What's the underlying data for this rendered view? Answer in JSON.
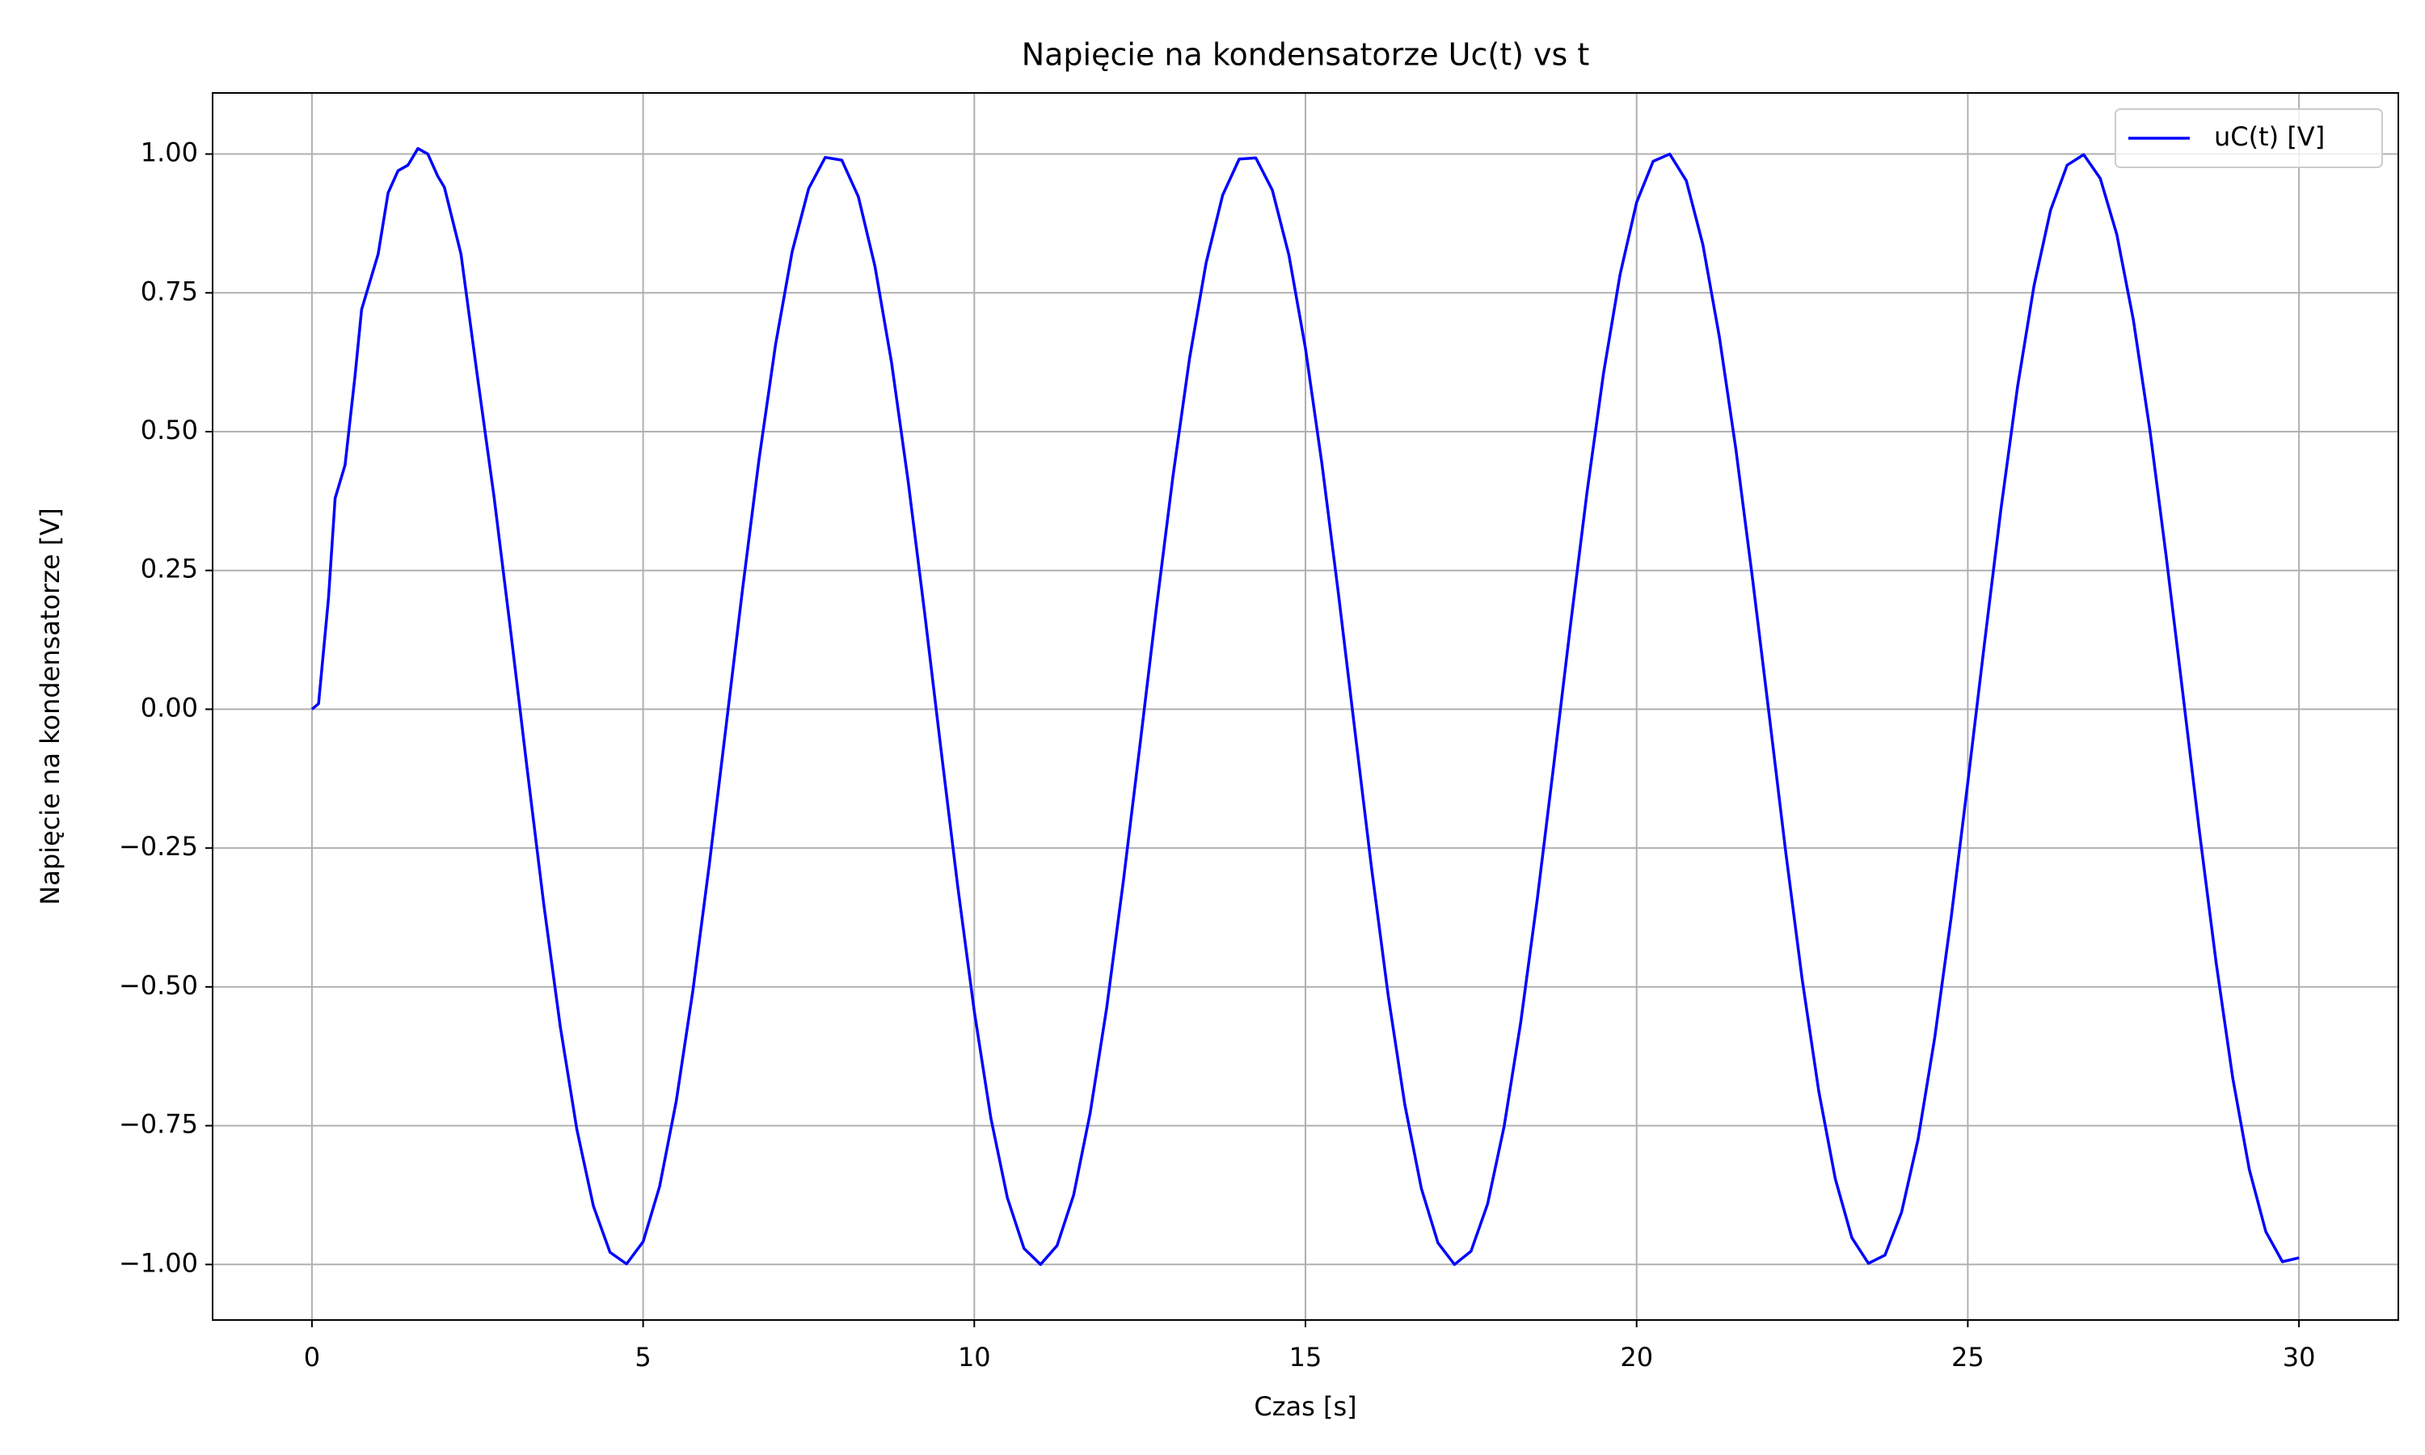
{
  "chart_data": {
    "type": "line",
    "title": "Napięcie na kondensatorze Uc(t) vs t",
    "xlabel": "Czas [s]",
    "ylabel": "Napięcie na kondensatorze [V]",
    "x": [
      0,
      0.1,
      0.25,
      0.35,
      0.5,
      0.65,
      0.75,
      0.9,
      1.0,
      1.15,
      1.3,
      1.45,
      1.6,
      1.75,
      1.9,
      2.0,
      2.25,
      2.5,
      2.75,
      3.0,
      3.25,
      3.5,
      3.75,
      4.0,
      4.25,
      4.5,
      4.75,
      5.0,
      5.25,
      5.5,
      5.75,
      6.0,
      6.25,
      6.5,
      6.75,
      7.0,
      7.25,
      7.5,
      7.75,
      8.0,
      8.25,
      8.5,
      8.75,
      9.0,
      9.25,
      9.5,
      9.75,
      10.0,
      10.25,
      10.5,
      10.75,
      11.0,
      11.25,
      11.5,
      11.75,
      12.0,
      12.25,
      12.5,
      12.75,
      13.0,
      13.25,
      13.5,
      13.75,
      14.0,
      14.25,
      14.5,
      14.75,
      15.0,
      15.25,
      15.5,
      15.75,
      16.0,
      16.25,
      16.5,
      16.75,
      17.0,
      17.25,
      17.5,
      17.75,
      18.0,
      18.25,
      18.5,
      18.75,
      19.0,
      19.25,
      19.5,
      19.75,
      20.0,
      20.25,
      20.5,
      20.75,
      21.0,
      21.25,
      21.5,
      21.75,
      22.0,
      22.25,
      22.5,
      22.75,
      23.0,
      23.25,
      23.5,
      23.75,
      24.0,
      24.25,
      24.5,
      24.75,
      25.0,
      25.25,
      25.5,
      25.75,
      26.0,
      26.25,
      26.5,
      26.75,
      27.0,
      27.25,
      27.5,
      27.75,
      28.0,
      28.25,
      28.5,
      28.75,
      29.0,
      29.25,
      29.5,
      29.75,
      30.0
    ],
    "series": [
      {
        "name": "uC(t) [V]",
        "color": "#0000ff",
        "values": [
          0,
          0.01,
          0.2,
          0.38,
          0.44,
          0.6,
          0.72,
          0.78,
          0.82,
          0.93,
          0.97,
          0.98,
          1.01,
          1.0,
          0.96,
          0.94,
          0.82,
          0.598,
          0.382,
          0.141,
          -0.108,
          -0.351,
          -0.572,
          -0.757,
          -0.895,
          -0.978,
          -0.999,
          -0.959,
          -0.859,
          -0.706,
          -0.508,
          -0.279,
          -0.033,
          0.215,
          0.45,
          0.657,
          0.824,
          0.938,
          0.994,
          0.989,
          0.923,
          0.798,
          0.625,
          0.412,
          0.174,
          -0.075,
          -0.319,
          -0.544,
          -0.736,
          -0.88,
          -0.971,
          -1.0,
          -0.966,
          -0.875,
          -0.727,
          -0.537,
          -0.31,
          -0.066,
          0.183,
          0.42,
          0.632,
          0.804,
          0.926,
          0.991,
          0.993,
          0.935,
          0.818,
          0.65,
          0.441,
          0.206,
          -0.042,
          -0.288,
          -0.516,
          -0.712,
          -0.863,
          -0.961,
          -1.0,
          -0.976,
          -0.891,
          -0.751,
          -0.564,
          -0.342,
          -0.099,
          0.15,
          0.39,
          0.605,
          0.783,
          0.913,
          0.987,
          1.0,
          0.952,
          0.837,
          0.67,
          0.467,
          0.235,
          -0.009,
          -0.256,
          -0.487,
          -0.688,
          -0.846,
          -0.952,
          -0.998,
          -0.983,
          -0.906,
          -0.774,
          -0.592,
          -0.374,
          -0.132,
          0.117,
          0.36,
          0.58,
          0.763,
          0.899,
          0.98,
          0.999,
          0.956,
          0.855,
          0.701,
          0.502,
          0.271,
          0.025,
          -0.223,
          -0.457,
          -0.664,
          -0.829,
          -0.941,
          -0.995,
          -0.988
        ]
      }
    ],
    "xlim": [
      -1.5,
      31.5
    ],
    "ylim": [
      -1.1,
      1.11
    ],
    "xticks": [
      0,
      5,
      10,
      15,
      20,
      25,
      30
    ],
    "yticks": [
      {
        "value": -1,
        "label": "−1.00"
      },
      {
        "value": -0.75,
        "label": "−0.75"
      },
      {
        "value": -0.5,
        "label": "−0.50"
      },
      {
        "value": -0.25,
        "label": "−0.25"
      },
      {
        "value": 0,
        "label": "0.00"
      },
      {
        "value": 0.25,
        "label": "0.25"
      },
      {
        "value": 0.5,
        "label": "0.50"
      },
      {
        "value": 0.75,
        "label": "0.75"
      },
      {
        "value": 1,
        "label": "1.00"
      }
    ],
    "grid": true,
    "legend": "upper right"
  }
}
